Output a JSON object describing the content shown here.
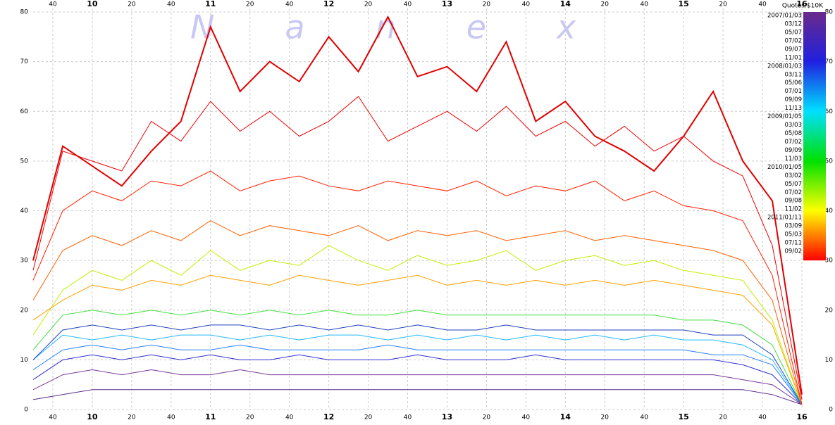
{
  "chart_data": {
    "type": "line",
    "title": "Quotes/$10K",
    "watermark": "Nanex",
    "xlim": [
      570,
      960
    ],
    "xticks": [
      {
        "value": 580,
        "label": "40"
      },
      {
        "value": 600,
        "label": "10"
      },
      {
        "value": 620,
        "label": "20"
      },
      {
        "value": 640,
        "label": "40"
      },
      {
        "value": 660,
        "label": "11"
      },
      {
        "value": 680,
        "label": "20"
      },
      {
        "value": 700,
        "label": "40"
      },
      {
        "value": 720,
        "label": "12"
      },
      {
        "value": 740,
        "label": "20"
      },
      {
        "value": 760,
        "label": "40"
      },
      {
        "value": 780,
        "label": "13"
      },
      {
        "value": 800,
        "label": "20"
      },
      {
        "value": 820,
        "label": "40"
      },
      {
        "value": 840,
        "label": "14"
      },
      {
        "value": 860,
        "label": "20"
      },
      {
        "value": 880,
        "label": "40"
      },
      {
        "value": 900,
        "label": "15"
      },
      {
        "value": 920,
        "label": "20"
      },
      {
        "value": 940,
        "label": "40"
      },
      {
        "value": 960,
        "label": "16"
      }
    ],
    "ylim": [
      0,
      80
    ],
    "yticks": [
      0,
      10,
      20,
      30,
      40,
      50,
      60,
      70,
      80
    ],
    "grid": true,
    "x": [
      570,
      585,
      600,
      615,
      630,
      645,
      660,
      675,
      690,
      705,
      720,
      735,
      750,
      765,
      780,
      795,
      810,
      825,
      840,
      855,
      870,
      885,
      900,
      915,
      930,
      945,
      960
    ],
    "series": [
      {
        "color": "#5a2a8a",
        "values": [
          2,
          3,
          4,
          4,
          4,
          4,
          4,
          4,
          4,
          4,
          4,
          4,
          4,
          4,
          4,
          4,
          4,
          4,
          4,
          4,
          4,
          4,
          4,
          4,
          4,
          3,
          1
        ]
      },
      {
        "color": "#7a3a9a",
        "values": [
          4,
          7,
          8,
          7,
          8,
          7,
          7,
          8,
          7,
          7,
          7,
          7,
          7,
          7,
          7,
          7,
          7,
          7,
          7,
          7,
          7,
          7,
          7,
          7,
          6,
          5,
          1
        ]
      },
      {
        "color": "#3030d0",
        "values": [
          6,
          10,
          11,
          10,
          11,
          10,
          11,
          10,
          10,
          11,
          10,
          10,
          10,
          11,
          10,
          10,
          10,
          11,
          10,
          10,
          10,
          10,
          10,
          10,
          9,
          7,
          1
        ]
      },
      {
        "color": "#2a80ff",
        "values": [
          8,
          12,
          13,
          12,
          13,
          12,
          12,
          13,
          12,
          12,
          12,
          12,
          13,
          12,
          12,
          12,
          12,
          12,
          12,
          12,
          12,
          12,
          12,
          11,
          11,
          9,
          1
        ]
      },
      {
        "color": "#20b8ff",
        "values": [
          10,
          15,
          14,
          15,
          14,
          15,
          15,
          14,
          15,
          14,
          15,
          15,
          14,
          15,
          14,
          15,
          14,
          15,
          14,
          15,
          14,
          15,
          14,
          14,
          13,
          10,
          1
        ]
      },
      {
        "color": "#2040c0",
        "values": [
          10,
          16,
          17,
          16,
          17,
          16,
          17,
          17,
          16,
          17,
          16,
          17,
          16,
          17,
          16,
          16,
          17,
          16,
          16,
          16,
          16,
          16,
          16,
          15,
          15,
          11,
          1
        ]
      },
      {
        "color": "#40e040",
        "values": [
          12,
          19,
          20,
          19,
          20,
          19,
          20,
          19,
          20,
          19,
          20,
          19,
          19,
          20,
          19,
          19,
          19,
          19,
          19,
          19,
          19,
          19,
          18,
          18,
          17,
          13,
          1
        ]
      },
      {
        "color": "#c0f000",
        "values": [
          15,
          24,
          28,
          26,
          30,
          27,
          32,
          28,
          30,
          29,
          33,
          30,
          28,
          31,
          29,
          30,
          32,
          28,
          30,
          31,
          29,
          30,
          28,
          27,
          26,
          18,
          1
        ]
      },
      {
        "color": "#ffa000",
        "values": [
          18,
          22,
          25,
          24,
          26,
          25,
          27,
          26,
          25,
          27,
          26,
          25,
          26,
          27,
          25,
          26,
          25,
          26,
          25,
          26,
          25,
          26,
          25,
          24,
          23,
          17,
          1
        ]
      },
      {
        "color": "#ff6000",
        "values": [
          22,
          32,
          35,
          33,
          36,
          34,
          38,
          35,
          37,
          36,
          35,
          37,
          34,
          36,
          35,
          36,
          34,
          35,
          36,
          34,
          35,
          34,
          33,
          32,
          30,
          22,
          1
        ]
      },
      {
        "color": "#ff2000",
        "values": [
          26,
          40,
          44,
          42,
          46,
          45,
          48,
          44,
          46,
          47,
          45,
          44,
          46,
          45,
          44,
          46,
          43,
          45,
          44,
          46,
          42,
          44,
          41,
          40,
          38,
          27,
          1
        ]
      },
      {
        "color": "#ee0000",
        "values": [
          28,
          52,
          50,
          48,
          58,
          54,
          62,
          56,
          60,
          55,
          58,
          63,
          54,
          57,
          60,
          56,
          61,
          55,
          58,
          53,
          57,
          52,
          55,
          50,
          47,
          33,
          2
        ]
      },
      {
        "color": "#e00000",
        "width": 2,
        "values": [
          30,
          53,
          49,
          45,
          52,
          58,
          77,
          64,
          70,
          66,
          75,
          68,
          79,
          67,
          69,
          64,
          74,
          58,
          62,
          55,
          52,
          48,
          55,
          64,
          50,
          42,
          3
        ]
      }
    ],
    "colorbar": {
      "lim": [
        30,
        80
      ],
      "colors": [
        "#ff0000",
        "#ffff00",
        "#00e000",
        "#00e0ff",
        "#2020e0",
        "#6a2a8a"
      ],
      "labels": [
        "2007/01/03",
        "03/12",
        "05/07",
        "07/02",
        "09/07",
        "11/01",
        "2008/01/03",
        "03/11",
        "05/06",
        "07/01",
        "09/09",
        "11/13",
        "2009/01/05",
        "03/03",
        "05/08",
        "07/02",
        "09/09",
        "11/03",
        "2010/01/05",
        "03/02",
        "05/07",
        "07/02",
        "09/08",
        "11/02",
        "2011/01/11",
        "03/09",
        "05/03",
        "07/11",
        "09/02"
      ]
    }
  }
}
